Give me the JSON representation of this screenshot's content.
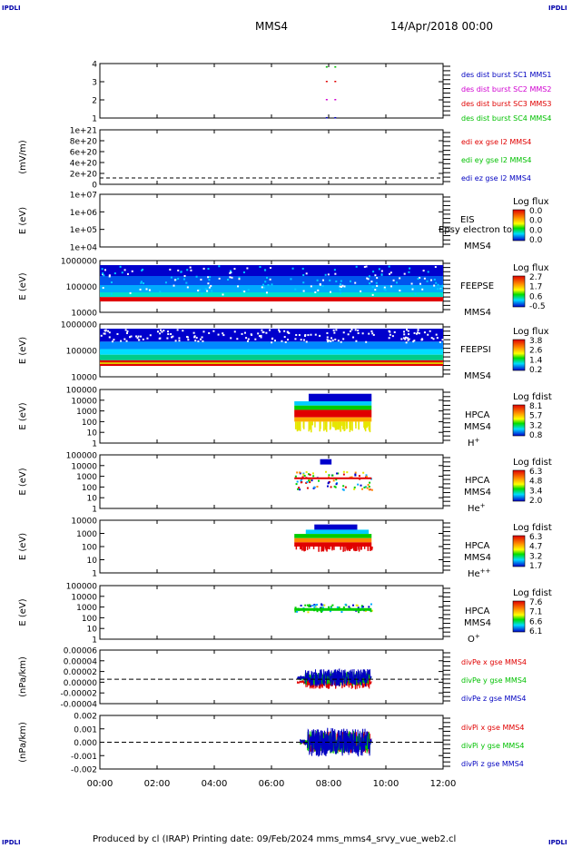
{
  "corner_label": "IPDLI",
  "header": {
    "spacecraft": "MMS4",
    "date": "14/Apr/2018 00:00"
  },
  "footer": {
    "text": "Produced by cl (IRAP)   Printing date: 09/Feb/2024   mms_mms4_srvy_vue_web2.cl"
  },
  "colors": {
    "red": "#e00000",
    "green": "#00c000",
    "blue": "#0000c0",
    "magenta": "#d000d0"
  },
  "chart_data": [
    {
      "type": "scatter",
      "panel": "burst",
      "y_ticks": [
        "4",
        "3",
        "2",
        "1"
      ],
      "legend": [
        {
          "label": "des dist burst SC1 MMS1",
          "color": "#0000c0"
        },
        {
          "label": "des dist burst SC2 MMS2",
          "color": "#d000d0"
        },
        {
          "label": "des dist burst SC3 MMS3",
          "color": "#e00000"
        },
        {
          "label": "des dist burst SC4 MMS4",
          "color": "#00c000"
        }
      ],
      "series": [
        {
          "sc": 4,
          "times": [
            7.9,
            8.2
          ]
        },
        {
          "sc": 3,
          "times": [
            7.9,
            8.2
          ]
        },
        {
          "sc": 2,
          "times": [
            7.9,
            8.2
          ]
        },
        {
          "sc": 1,
          "times": [
            7.9,
            8.2
          ]
        }
      ]
    },
    {
      "type": "line",
      "panel": "edi",
      "ylabel": "(mV/m)",
      "y_ticks": [
        "1e+21",
        "8e+20",
        "6e+20",
        "4e+20",
        "2e+20",
        "0"
      ],
      "legend": [
        {
          "label": "edi ex gse l2 MMS4",
          "color": "#e00000"
        },
        {
          "label": "edi ey gse l2 MMS4",
          "color": "#00c000"
        },
        {
          "label": "edi ez gse l2 MMS4",
          "color": "#0000c0"
        }
      ]
    },
    {
      "type": "heatmap",
      "panel": "eis",
      "ylabel": "E (eV)",
      "y_ticks": [
        "1e+07",
        "1e+06",
        "1e+05",
        "1e+04"
      ],
      "instrument": "EIS",
      "spacecraft": "MMS4",
      "overlap_text": "Epsy electron to",
      "colorbar_title": "Log flux",
      "colorbar_ticks": [
        "0.0",
        "0.0",
        "0.0",
        "0.0"
      ]
    },
    {
      "type": "heatmap",
      "panel": "feepse",
      "ylabel": "E (eV)",
      "y_ticks": [
        "1000000",
        "100000",
        "10000"
      ],
      "instrument": "FEEPSE",
      "spacecraft": "MMS4",
      "colorbar_title": "Log flux",
      "colorbar_ticks": [
        "2.7",
        "1.7",
        "0.6",
        "-0.5"
      ],
      "time_range": [
        0,
        12
      ]
    },
    {
      "type": "heatmap",
      "panel": "feepsi",
      "ylabel": "E (eV)",
      "y_ticks": [
        "1000000",
        "100000",
        "10000"
      ],
      "instrument": "FEEPSI",
      "spacecraft": "MMS4",
      "colorbar_title": "Log flux",
      "colorbar_ticks": [
        "3.8",
        "2.6",
        "1.4",
        "0.2"
      ],
      "time_range": [
        0,
        12
      ]
    },
    {
      "type": "heatmap",
      "panel": "hpca-h",
      "ylabel": "E (eV)",
      "y_ticks": [
        "100000",
        "10000",
        "1000",
        "100",
        "10",
        "1"
      ],
      "instrument": "HPCA",
      "spacecraft": "MMS4",
      "species": "H",
      "species_charge": "+",
      "colorbar_title": "Log fdist",
      "colorbar_ticks": [
        "8.1",
        "5.7",
        "3.2",
        "0.8"
      ],
      "time_range": [
        6.8,
        9.5
      ]
    },
    {
      "type": "heatmap",
      "panel": "hpca-he",
      "ylabel": "E (eV)",
      "y_ticks": [
        "100000",
        "10000",
        "1000",
        "100",
        "10",
        "1"
      ],
      "instrument": "HPCA",
      "spacecraft": "MMS4",
      "species": "He",
      "species_charge": "+",
      "colorbar_title": "Log fdist",
      "colorbar_ticks": [
        "6.3",
        "4.8",
        "3.4",
        "2.0"
      ],
      "time_range": [
        6.8,
        9.5
      ]
    },
    {
      "type": "heatmap",
      "panel": "hpca-hepp",
      "ylabel": "E (eV)",
      "y_ticks": [
        "10000",
        "1000",
        "100",
        "10",
        "1"
      ],
      "instrument": "HPCA",
      "spacecraft": "MMS4",
      "species": "He",
      "species_charge": "++",
      "colorbar_title": "Log fdist",
      "colorbar_ticks": [
        "6.3",
        "4.7",
        "3.2",
        "1.7"
      ],
      "time_range": [
        6.8,
        9.5
      ]
    },
    {
      "type": "heatmap",
      "panel": "hpca-o",
      "ylabel": "E (eV)",
      "y_ticks": [
        "100000",
        "10000",
        "1000",
        "100",
        "10",
        "1"
      ],
      "instrument": "HPCA",
      "spacecraft": "MMS4",
      "species": "O",
      "species_charge": "+",
      "colorbar_title": "Log fdist",
      "colorbar_ticks": [
        "7.6",
        "7.1",
        "6.6",
        "6.1"
      ],
      "time_range": [
        6.8,
        9.5
      ]
    },
    {
      "type": "line",
      "panel": "divpe",
      "ylabel": "(nPa/km)",
      "y_ticks": [
        "0.00006",
        "0.00004",
        "0.00002",
        "0.00000",
        "-0.00002",
        "-0.00004"
      ],
      "ylim": [
        -5e-05,
        6e-05
      ],
      "time_range": [
        6.9,
        9.5
      ],
      "legend": [
        {
          "label": "divPe x gse MMS4",
          "color": "#e00000"
        },
        {
          "label": "divPe y gse MMS4",
          "color": "#00c000"
        },
        {
          "label": "divPe z gse MMS4",
          "color": "#0000c0"
        }
      ]
    },
    {
      "type": "line",
      "panel": "divpi",
      "ylabel": "(nPa/km)",
      "y_ticks": [
        "0.002",
        "0.001",
        "0.000",
        "-0.001",
        "-0.002"
      ],
      "ylim": [
        -0.002,
        0.002
      ],
      "time_range": [
        7.0,
        9.5
      ],
      "legend": [
        {
          "label": "divPi x gse MMS4",
          "color": "#e00000"
        },
        {
          "label": "divPi y gse MMS4",
          "color": "#00c000"
        },
        {
          "label": "divPi z gse MMS4",
          "color": "#0000c0"
        }
      ]
    }
  ],
  "x_axis": {
    "ticks": [
      "00:00",
      "02:00",
      "04:00",
      "06:00",
      "08:00",
      "10:00",
      "12:00"
    ],
    "range_hours": [
      0,
      12
    ]
  }
}
